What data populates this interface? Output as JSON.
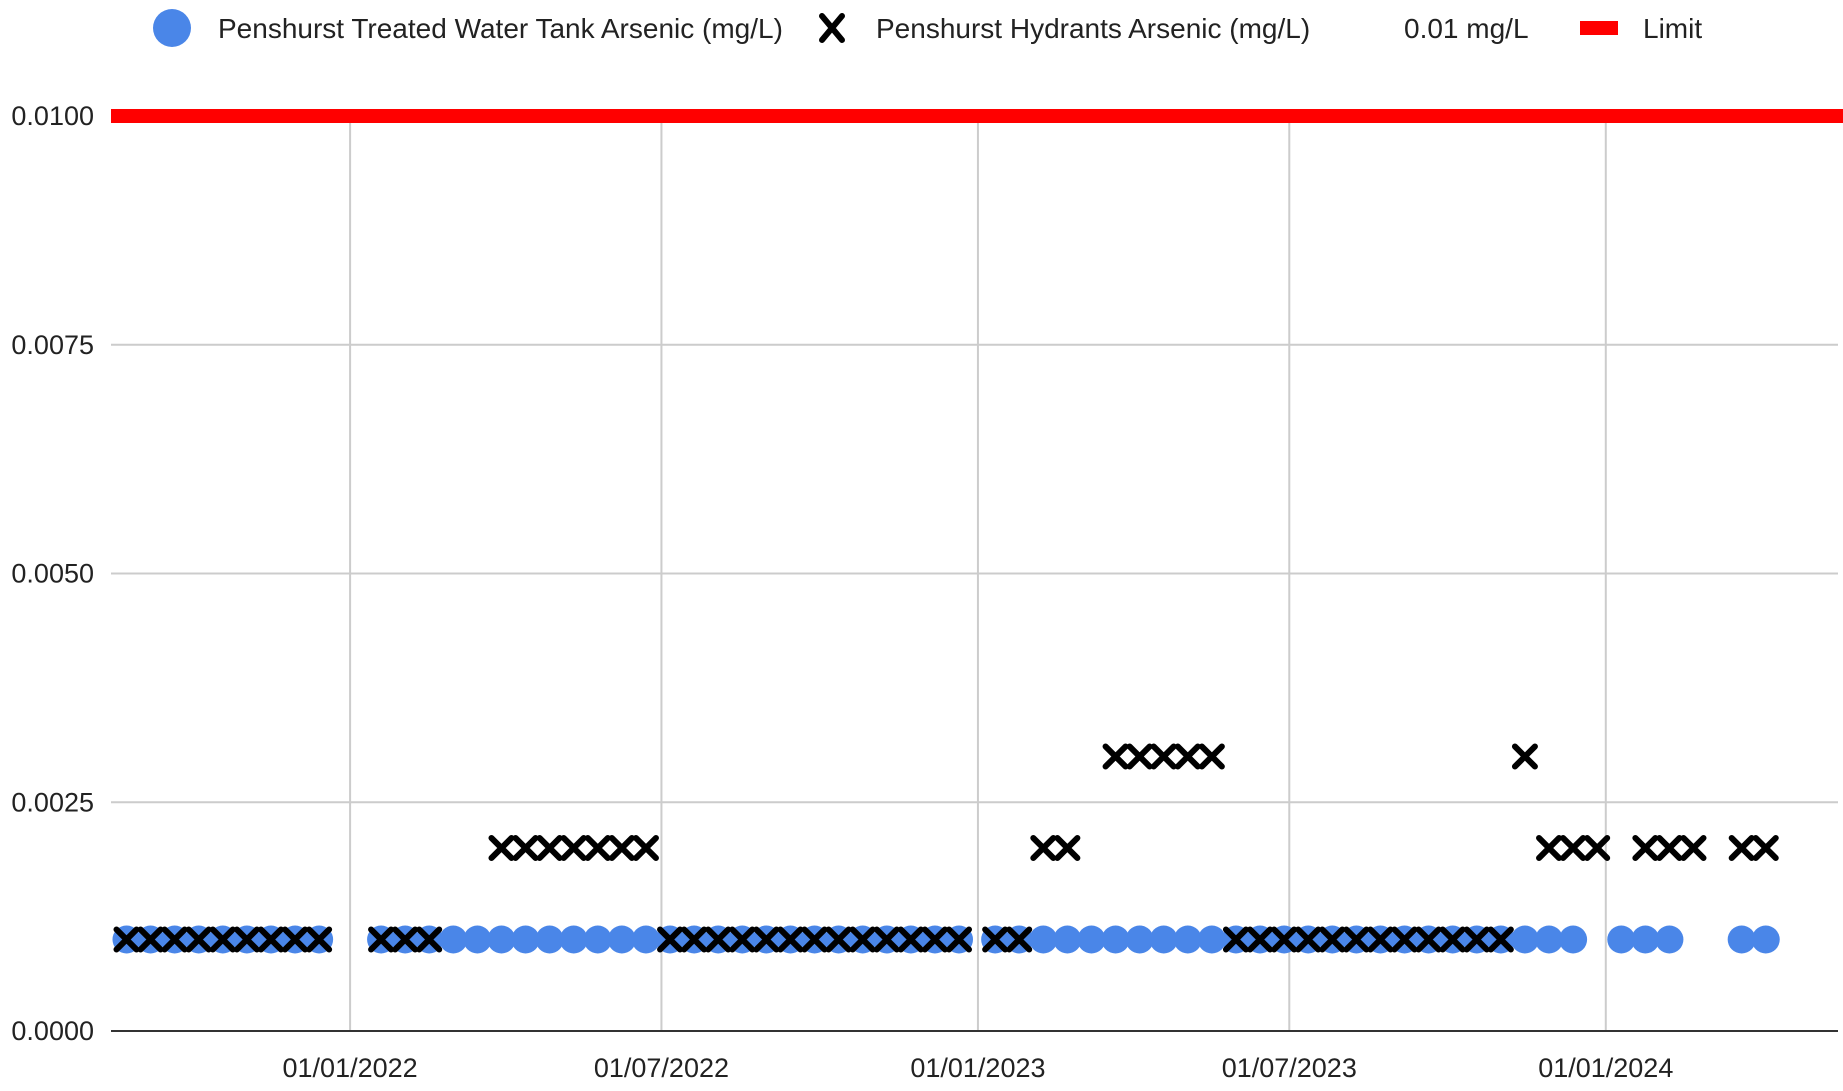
{
  "chart_data": {
    "type": "scatter",
    "title": "",
    "xlabel": "",
    "ylabel": "",
    "x_axis_type": "date",
    "xlim": [
      "2021-08-15",
      "2024-05-15"
    ],
    "ylim": [
      0,
      0.01
    ],
    "grid": true,
    "legend_position": "top",
    "x_ticks": [
      {
        "value": "2022-01-01",
        "label": "01/01/2022"
      },
      {
        "value": "2022-07-01",
        "label": "01/07/2022"
      },
      {
        "value": "2023-01-01",
        "label": "01/01/2023"
      },
      {
        "value": "2023-07-01",
        "label": "01/07/2023"
      },
      {
        "value": "2024-01-01",
        "label": "01/01/2024"
      }
    ],
    "y_ticks": [
      {
        "value": 0,
        "label": "0.0000"
      },
      {
        "value": 0.0025,
        "label": "0.0025"
      },
      {
        "value": 0.005,
        "label": "0.0050"
      },
      {
        "value": 0.0075,
        "label": "0.0075"
      },
      {
        "value": 0.01,
        "label": "0.0100"
      }
    ],
    "series": [
      {
        "name": "Penshurst Treated Water Tank Arsenic (mg/L)",
        "marker": "circle",
        "color": "#4a86e8",
        "points": [
          {
            "x": "2021-08-24",
            "y": 0.001
          },
          {
            "x": "2021-09-07",
            "y": 0.001
          },
          {
            "x": "2021-09-21",
            "y": 0.001
          },
          {
            "x": "2021-10-05",
            "y": 0.001
          },
          {
            "x": "2021-10-19",
            "y": 0.001
          },
          {
            "x": "2021-11-02",
            "y": 0.001
          },
          {
            "x": "2021-11-16",
            "y": 0.001
          },
          {
            "x": "2021-11-30",
            "y": 0.001
          },
          {
            "x": "2021-12-14",
            "y": 0.001
          },
          {
            "x": "2022-01-19",
            "y": 0.001
          },
          {
            "x": "2022-02-02",
            "y": 0.001
          },
          {
            "x": "2022-02-16",
            "y": 0.001
          },
          {
            "x": "2022-03-02",
            "y": 0.001
          },
          {
            "x": "2022-03-16",
            "y": 0.001
          },
          {
            "x": "2022-03-30",
            "y": 0.001
          },
          {
            "x": "2022-04-13",
            "y": 0.001
          },
          {
            "x": "2022-04-27",
            "y": 0.001
          },
          {
            "x": "2022-05-11",
            "y": 0.001
          },
          {
            "x": "2022-05-25",
            "y": 0.001
          },
          {
            "x": "2022-06-08",
            "y": 0.001
          },
          {
            "x": "2022-06-22",
            "y": 0.001
          },
          {
            "x": "2022-07-06",
            "y": 0.001
          },
          {
            "x": "2022-07-20",
            "y": 0.001
          },
          {
            "x": "2022-08-03",
            "y": 0.001
          },
          {
            "x": "2022-08-17",
            "y": 0.001
          },
          {
            "x": "2022-08-31",
            "y": 0.001
          },
          {
            "x": "2022-09-14",
            "y": 0.001
          },
          {
            "x": "2022-09-28",
            "y": 0.001
          },
          {
            "x": "2022-10-12",
            "y": 0.001
          },
          {
            "x": "2022-10-26",
            "y": 0.001
          },
          {
            "x": "2022-11-09",
            "y": 0.001
          },
          {
            "x": "2022-11-23",
            "y": 0.001
          },
          {
            "x": "2022-12-07",
            "y": 0.001
          },
          {
            "x": "2022-12-21",
            "y": 0.001
          },
          {
            "x": "2023-01-11",
            "y": 0.001
          },
          {
            "x": "2023-01-25",
            "y": 0.001
          },
          {
            "x": "2023-02-08",
            "y": 0.001
          },
          {
            "x": "2023-02-22",
            "y": 0.001
          },
          {
            "x": "2023-03-08",
            "y": 0.001
          },
          {
            "x": "2023-03-22",
            "y": 0.001
          },
          {
            "x": "2023-04-05",
            "y": 0.001
          },
          {
            "x": "2023-04-19",
            "y": 0.001
          },
          {
            "x": "2023-05-03",
            "y": 0.001
          },
          {
            "x": "2023-05-17",
            "y": 0.001
          },
          {
            "x": "2023-05-31",
            "y": 0.001
          },
          {
            "x": "2023-06-14",
            "y": 0.001
          },
          {
            "x": "2023-06-28",
            "y": 0.001
          },
          {
            "x": "2023-07-12",
            "y": 0.001
          },
          {
            "x": "2023-07-26",
            "y": 0.001
          },
          {
            "x": "2023-08-09",
            "y": 0.001
          },
          {
            "x": "2023-08-23",
            "y": 0.001
          },
          {
            "x": "2023-09-06",
            "y": 0.001
          },
          {
            "x": "2023-09-20",
            "y": 0.001
          },
          {
            "x": "2023-10-04",
            "y": 0.001
          },
          {
            "x": "2023-10-18",
            "y": 0.001
          },
          {
            "x": "2023-11-01",
            "y": 0.001
          },
          {
            "x": "2023-11-15",
            "y": 0.001
          },
          {
            "x": "2023-11-29",
            "y": 0.001
          },
          {
            "x": "2023-12-13",
            "y": 0.001
          },
          {
            "x": "2024-01-10",
            "y": 0.001
          },
          {
            "x": "2024-01-24",
            "y": 0.001
          },
          {
            "x": "2024-02-07",
            "y": 0.001
          },
          {
            "x": "2024-03-20",
            "y": 0.001
          },
          {
            "x": "2024-04-03",
            "y": 0.001
          }
        ]
      },
      {
        "name": "Penshurst Hydrants Arsenic (mg/L)",
        "marker": "x",
        "color": "#000000",
        "points": [
          {
            "x": "2021-08-24",
            "y": 0.001
          },
          {
            "x": "2021-09-07",
            "y": 0.001
          },
          {
            "x": "2021-09-21",
            "y": 0.001
          },
          {
            "x": "2021-10-05",
            "y": 0.001
          },
          {
            "x": "2021-10-19",
            "y": 0.001
          },
          {
            "x": "2021-11-02",
            "y": 0.001
          },
          {
            "x": "2021-11-16",
            "y": 0.001
          },
          {
            "x": "2021-11-30",
            "y": 0.001
          },
          {
            "x": "2021-12-14",
            "y": 0.001
          },
          {
            "x": "2022-01-19",
            "y": 0.001
          },
          {
            "x": "2022-02-02",
            "y": 0.001
          },
          {
            "x": "2022-02-16",
            "y": 0.001
          },
          {
            "x": "2022-03-30",
            "y": 0.002
          },
          {
            "x": "2022-04-13",
            "y": 0.002
          },
          {
            "x": "2022-04-27",
            "y": 0.002
          },
          {
            "x": "2022-05-11",
            "y": 0.002
          },
          {
            "x": "2022-05-25",
            "y": 0.002
          },
          {
            "x": "2022-06-08",
            "y": 0.002
          },
          {
            "x": "2022-06-22",
            "y": 0.002
          },
          {
            "x": "2022-07-06",
            "y": 0.001
          },
          {
            "x": "2022-07-20",
            "y": 0.001
          },
          {
            "x": "2022-08-03",
            "y": 0.001
          },
          {
            "x": "2022-08-17",
            "y": 0.001
          },
          {
            "x": "2022-08-31",
            "y": 0.001
          },
          {
            "x": "2022-09-14",
            "y": 0.001
          },
          {
            "x": "2022-09-28",
            "y": 0.001
          },
          {
            "x": "2022-10-12",
            "y": 0.001
          },
          {
            "x": "2022-10-26",
            "y": 0.001
          },
          {
            "x": "2022-11-09",
            "y": 0.001
          },
          {
            "x": "2022-11-23",
            "y": 0.001
          },
          {
            "x": "2022-12-07",
            "y": 0.001
          },
          {
            "x": "2022-12-21",
            "y": 0.001
          },
          {
            "x": "2023-01-11",
            "y": 0.001
          },
          {
            "x": "2023-01-25",
            "y": 0.001
          },
          {
            "x": "2023-02-08",
            "y": 0.002
          },
          {
            "x": "2023-02-22",
            "y": 0.002
          },
          {
            "x": "2023-03-22",
            "y": 0.003
          },
          {
            "x": "2023-04-05",
            "y": 0.003
          },
          {
            "x": "2023-04-19",
            "y": 0.003
          },
          {
            "x": "2023-05-03",
            "y": 0.003
          },
          {
            "x": "2023-05-17",
            "y": 0.003
          },
          {
            "x": "2023-05-31",
            "y": 0.001
          },
          {
            "x": "2023-06-14",
            "y": 0.001
          },
          {
            "x": "2023-06-28",
            "y": 0.001
          },
          {
            "x": "2023-07-12",
            "y": 0.001
          },
          {
            "x": "2023-07-26",
            "y": 0.001
          },
          {
            "x": "2023-08-09",
            "y": 0.001
          },
          {
            "x": "2023-08-23",
            "y": 0.001
          },
          {
            "x": "2023-09-06",
            "y": 0.001
          },
          {
            "x": "2023-09-20",
            "y": 0.001
          },
          {
            "x": "2023-10-04",
            "y": 0.001
          },
          {
            "x": "2023-10-18",
            "y": 0.001
          },
          {
            "x": "2023-11-01",
            "y": 0.001
          },
          {
            "x": "2023-11-15",
            "y": 0.003
          },
          {
            "x": "2023-11-29",
            "y": 0.002
          },
          {
            "x": "2023-12-13",
            "y": 0.002
          },
          {
            "x": "2023-12-27",
            "y": 0.002
          },
          {
            "x": "2024-01-24",
            "y": 0.002
          },
          {
            "x": "2024-02-07",
            "y": 0.002
          },
          {
            "x": "2024-02-21",
            "y": 0.002
          },
          {
            "x": "2024-03-20",
            "y": 0.002
          },
          {
            "x": "2024-04-03",
            "y": 0.002
          }
        ]
      }
    ],
    "reference_lines": [
      {
        "name": "Limit",
        "value_label": "0.01 mg/L",
        "y": 0.01,
        "color": "#ff0000"
      }
    ]
  },
  "legend": {
    "tank_label": "Penshurst Treated Water Tank Arsenic (mg/L)",
    "hydrant_label": "Penshurst Hydrants Arsenic (mg/L)",
    "limit_value_label": "0.01 mg/L",
    "limit_label": "Limit"
  }
}
